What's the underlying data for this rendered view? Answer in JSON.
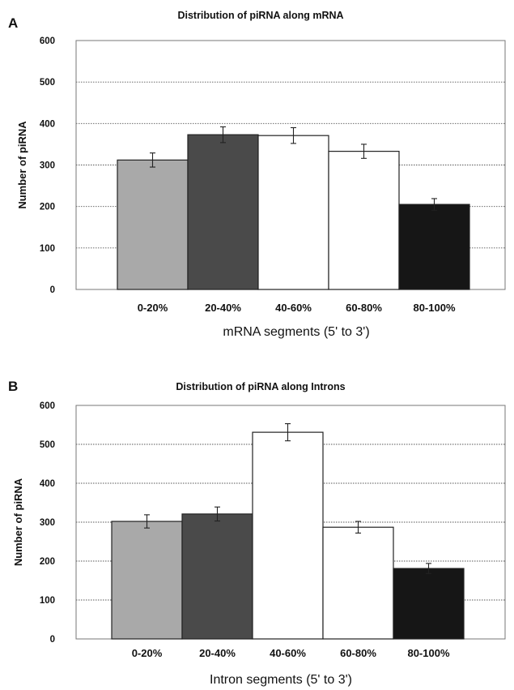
{
  "chart_data": [
    {
      "type": "bar",
      "panel": "A",
      "title": "Distribution of piRNA along mRNA",
      "xlabel": "mRNA segments (5' to 3')",
      "ylabel": "Number of piRNA",
      "ylim": [
        0,
        600
      ],
      "yticks": [
        "0",
        "100",
        "200",
        "300",
        "400",
        "500",
        "600"
      ],
      "grid": true,
      "categories": [
        "0-20%",
        "20-40%",
        "40-60%",
        "60-80%",
        "80-100%"
      ],
      "values": [
        312,
        373,
        371,
        333,
        205
      ],
      "errors": [
        17,
        19,
        19,
        17,
        14
      ],
      "colors": [
        "#a9a9a9",
        "#4a4a4a",
        "#ffffff",
        "#ffffff",
        "#161616"
      ]
    },
    {
      "type": "bar",
      "panel": "B",
      "title": "Distribution of piRNA along Introns",
      "xlabel": "Intron segments (5' to 3')",
      "ylabel": "Number of piRNA",
      "ylim": [
        0,
        600
      ],
      "yticks": [
        "0",
        "100",
        "200",
        "300",
        "400",
        "500",
        "600"
      ],
      "grid": true,
      "categories": [
        "0-20%",
        "20-40%",
        "40-60%",
        "60-80%",
        "80-100%"
      ],
      "values": [
        302,
        321,
        531,
        287,
        181
      ],
      "errors": [
        17,
        18,
        22,
        15,
        13
      ],
      "colors": [
        "#a9a9a9",
        "#4a4a4a",
        "#ffffff",
        "#ffffff",
        "#161616"
      ]
    }
  ]
}
